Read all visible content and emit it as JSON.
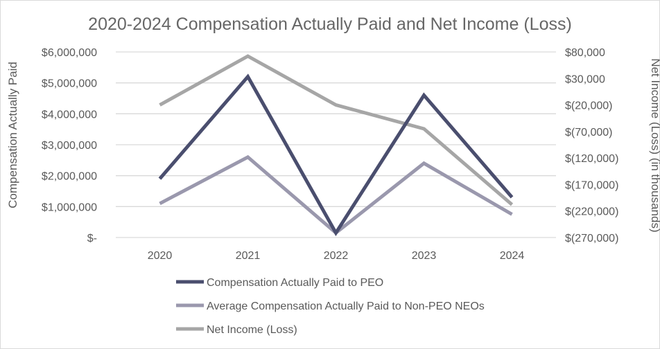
{
  "chart_data": {
    "type": "line",
    "title": "2020-2024 Compensation Actually Paid and Net Income (Loss)",
    "categories": [
      "2020",
      "2021",
      "2022",
      "2023",
      "2024"
    ],
    "y_left": {
      "label": "Compensation Actually Paid",
      "range": [
        0,
        6000000
      ],
      "tick_labels": [
        "$-",
        "$1,000,000",
        "$2,000,000",
        "$3,000,000",
        "$4,000,000",
        "$5,000,000",
        "$6,000,000"
      ],
      "tick_values": [
        0,
        1000000,
        2000000,
        3000000,
        4000000,
        5000000,
        6000000
      ]
    },
    "y_right": {
      "label": "Net Income (Loss) (in thousands)",
      "range": [
        -270000,
        80000
      ],
      "tick_labels": [
        "$(270,000)",
        "$(220,000)",
        "$(170,000)",
        "$(120,000)",
        "$(70,000)",
        "$(20,000)",
        "$30,000",
        "$80,000"
      ],
      "tick_values": [
        -270000,
        -220000,
        -170000,
        -120000,
        -70000,
        -20000,
        30000,
        80000
      ]
    },
    "grid": true,
    "legend_position": "bottom",
    "series": [
      {
        "name": "Compensation Actually Paid to PEO",
        "axis": "left",
        "color": "#4a4e6e",
        "values": [
          1900000,
          5200000,
          150000,
          4600000,
          1300000
        ]
      },
      {
        "name": "Average Compensation Actually Paid to Non-PEO NEOs",
        "axis": "left",
        "color": "#9a98ad",
        "values": [
          1100000,
          2600000,
          150000,
          2400000,
          750000
        ]
      },
      {
        "name": "Net Income (Loss)",
        "axis": "right",
        "color": "#a6a6a6",
        "values": [
          -20000,
          72000,
          -20000,
          -65000,
          -208000
        ]
      }
    ]
  }
}
